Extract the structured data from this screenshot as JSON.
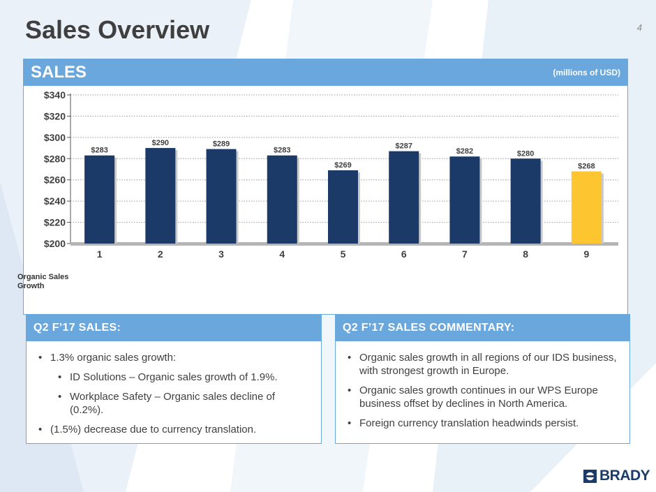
{
  "header": {
    "title": "Sales Overview",
    "page_number": "4"
  },
  "sales_panel": {
    "title": "SALES",
    "units": "(millions of USD)",
    "organic_label": "Organic Sales Growth"
  },
  "chart_data": {
    "type": "bar",
    "title": "",
    "xlabel": "",
    "ylabel": "",
    "categories": [
      "1",
      "2",
      "3",
      "4",
      "5",
      "6",
      "7",
      "8",
      "9"
    ],
    "values": [
      283,
      290,
      289,
      283,
      269,
      287,
      282,
      280,
      268
    ],
    "data_labels": [
      "$283",
      "$290",
      "$289",
      "$283",
      "$269",
      "$287",
      "$282",
      "$280",
      "$268"
    ],
    "ylim": [
      200,
      340
    ],
    "yticks": [
      200,
      220,
      240,
      260,
      280,
      300,
      320,
      340
    ],
    "ytick_labels": [
      "$200",
      "$220",
      "$240",
      "$260",
      "$280",
      "$300",
      "$320",
      "$340"
    ],
    "grid": true,
    "bar_color": "#1b3a68",
    "highlight_color": "#fdc52f",
    "highlight_index": 8
  },
  "left_box": {
    "title": "Q2 F’17 SALES:",
    "bullets": [
      "1.3% organic sales growth:",
      "ID Solutions – Organic sales growth of 1.9%.",
      "Workplace Safety – Organic sales decline of (0.2%).",
      "(1.5%) decrease due to currency translation."
    ]
  },
  "right_box": {
    "title": "Q2 F’17 SALES COMMENTARY:",
    "bullets": [
      "Organic sales growth in all regions of our IDS business, with strongest growth in Europe.",
      "Organic sales growth continues in our WPS Europe business offset by declines in North America.",
      "Foreign currency translation headwinds persist."
    ]
  },
  "logo": {
    "text": "BRADY",
    "icon": "brady-logo-icon"
  },
  "colors": {
    "header_blue": "#6aa7dc",
    "navy": "#1b3a68",
    "gold": "#fdc52f"
  }
}
